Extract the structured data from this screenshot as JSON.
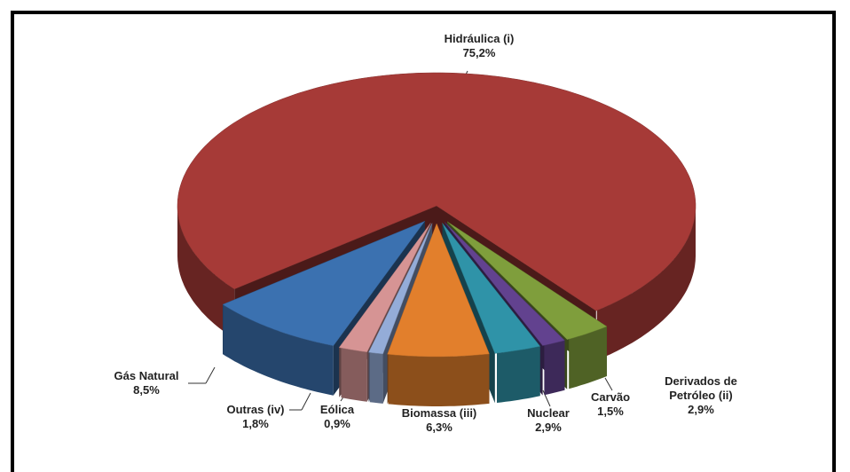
{
  "chart_data": {
    "type": "pie",
    "categories": [
      "Hidráulica (i)",
      "Derivados de Petróleo (ii)",
      "Carvão",
      "Nuclear",
      "Biomassa (iii)",
      "Eólica",
      "Outras (iv)",
      "Gás Natural"
    ],
    "values": [
      75.2,
      2.9,
      1.5,
      2.9,
      6.3,
      0.9,
      1.8,
      8.5
    ],
    "value_labels": [
      "75,2%",
      "2,9%",
      "1,5%",
      "2,9%",
      "6,3%",
      "0,9%",
      "1,8%",
      "8,5%"
    ],
    "colors": [
      "#a63a37",
      "#7f9e3c",
      "#62428f",
      "#2f93a8",
      "#e27f2c",
      "#94acd8",
      "#d69494",
      "#3b71b0"
    ]
  }
}
